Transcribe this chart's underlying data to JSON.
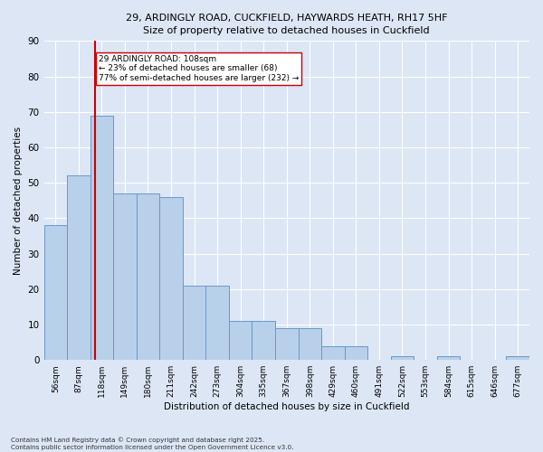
{
  "title_line1": "29, ARDINGLY ROAD, CUCKFIELD, HAYWARDS HEATH, RH17 5HF",
  "title_line2": "Size of property relative to detached houses in Cuckfield",
  "xlabel": "Distribution of detached houses by size in Cuckfield",
  "ylabel": "Number of detached properties",
  "bar_values": [
    38,
    52,
    69,
    47,
    47,
    46,
    21,
    21,
    11,
    11,
    9,
    9,
    4,
    4,
    0,
    1,
    0,
    1,
    0,
    0,
    1
  ],
  "bar_color": "#b8d0ea",
  "bar_edge_color": "#6699cc",
  "vline_x_index": 1.7,
  "vline_color": "#cc0000",
  "annotation_text": "29 ARDINGLY ROAD: 108sqm\n← 23% of detached houses are smaller (68)\n77% of semi-detached houses are larger (232) →",
  "annotation_box_color": "#ffffff",
  "annotation_box_edge": "#cc0000",
  "ylim": [
    0,
    90
  ],
  "yticks": [
    0,
    10,
    20,
    30,
    40,
    50,
    60,
    70,
    80,
    90
  ],
  "background_color": "#dce6f5",
  "grid_color": "#ffffff",
  "footer_text": "Contains HM Land Registry data © Crown copyright and database right 2025.\nContains public sector information licensed under the Open Government Licence v3.0.",
  "tick_labels": [
    "56sqm",
    "87sqm",
    "118sqm",
    "149sqm",
    "180sqm",
    "211sqm",
    "242sqm",
    "273sqm",
    "304sqm",
    "335sqm",
    "367sqm",
    "398sqm",
    "429sqm",
    "460sqm",
    "491sqm",
    "522sqm",
    "553sqm",
    "584sqm",
    "615sqm",
    "646sqm",
    "677sqm"
  ],
  "n_bars": 21,
  "property_bar_index": 1.7
}
